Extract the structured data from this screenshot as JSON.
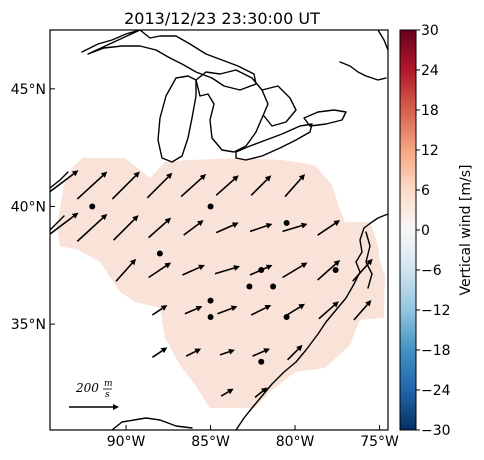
{
  "title": "2013/12/23 23:30:00 UT",
  "map": {
    "lon_range": [
      -94.5,
      -74.5
    ],
    "lat_range": [
      30.5,
      47.5
    ],
    "x_ticks": [
      {
        "lon": -90,
        "label": "90°W"
      },
      {
        "lon": -85,
        "label": "85°W"
      },
      {
        "lon": -80,
        "label": "80°W"
      },
      {
        "lon": -75,
        "label": "75°W"
      }
    ],
    "y_ticks": [
      {
        "lat": 45,
        "label": "45°N"
      },
      {
        "lat": 40,
        "label": "40°N"
      },
      {
        "lat": 35,
        "label": "35°N"
      }
    ],
    "field_color": "#f9e3d9"
  },
  "colorbar": {
    "label": "Vertical wind [m/s]",
    "min": -30,
    "max": 30,
    "ticks": [
      "30",
      "24",
      "18",
      "12",
      "6",
      "0",
      "−6",
      "−12",
      "−18",
      "−24",
      "−30"
    ],
    "colors": [
      "#053061",
      "#2166ac",
      "#4393c3",
      "#92c5de",
      "#d1e5f0",
      "#f7f7f7",
      "#fddbc7",
      "#f4a582",
      "#d6604d",
      "#b2182b",
      "#67001f"
    ]
  },
  "reference_arrow": {
    "label_value": "200",
    "label_unit_num": "m",
    "label_unit_den": "s",
    "magnitude": 200
  },
  "wind_vectors": [
    {
      "lon": -94.0,
      "lat": 40.9,
      "u": 160,
      "v": 120
    },
    {
      "lon": -92.0,
      "lat": 40.9,
      "u": 120,
      "v": 110
    },
    {
      "lon": -90.0,
      "lat": 40.9,
      "u": 110,
      "v": 110
    },
    {
      "lon": -88.0,
      "lat": 40.9,
      "u": 100,
      "v": 100
    },
    {
      "lon": -86.0,
      "lat": 40.9,
      "u": 100,
      "v": 90
    },
    {
      "lon": -84.0,
      "lat": 40.9,
      "u": 90,
      "v": 80
    },
    {
      "lon": -82.0,
      "lat": 40.9,
      "u": 80,
      "v": 80
    },
    {
      "lon": -80.0,
      "lat": 40.9,
      "u": 80,
      "v": 90
    },
    {
      "lon": -94.0,
      "lat": 39.1,
      "u": 160,
      "v": 120
    },
    {
      "lon": -92.0,
      "lat": 39.1,
      "u": 120,
      "v": 110
    },
    {
      "lon": -90.0,
      "lat": 39.1,
      "u": 100,
      "v": 100
    },
    {
      "lon": -88.0,
      "lat": 39.1,
      "u": 90,
      "v": 80
    },
    {
      "lon": -86.0,
      "lat": 39.1,
      "u": 80,
      "v": 60
    },
    {
      "lon": -84.0,
      "lat": 39.1,
      "u": 90,
      "v": 40
    },
    {
      "lon": -82.0,
      "lat": 39.1,
      "u": 90,
      "v": 30
    },
    {
      "lon": -80.0,
      "lat": 39.1,
      "u": 100,
      "v": 30
    },
    {
      "lon": -78.0,
      "lat": 39.1,
      "u": 90,
      "v": 60
    },
    {
      "lon": -90.0,
      "lat": 37.3,
      "u": 80,
      "v": 90
    },
    {
      "lon": -88.0,
      "lat": 37.3,
      "u": 90,
      "v": 60
    },
    {
      "lon": -86.0,
      "lat": 37.3,
      "u": 90,
      "v": 40
    },
    {
      "lon": -84.0,
      "lat": 37.3,
      "u": 100,
      "v": 30
    },
    {
      "lon": -82.0,
      "lat": 37.3,
      "u": 90,
      "v": 40
    },
    {
      "lon": -80.0,
      "lat": 37.3,
      "u": 100,
      "v": 60
    },
    {
      "lon": -78.0,
      "lat": 37.3,
      "u": 90,
      "v": 80
    },
    {
      "lon": -76.0,
      "lat": 37.3,
      "u": 80,
      "v": 90
    },
    {
      "lon": -88.0,
      "lat": 35.6,
      "u": 60,
      "v": 40
    },
    {
      "lon": -86.0,
      "lat": 35.6,
      "u": 70,
      "v": 30
    },
    {
      "lon": -84.0,
      "lat": 35.6,
      "u": 80,
      "v": 30
    },
    {
      "lon": -82.0,
      "lat": 35.6,
      "u": 80,
      "v": 40
    },
    {
      "lon": -80.0,
      "lat": 35.6,
      "u": 80,
      "v": 50
    },
    {
      "lon": -78.0,
      "lat": 35.6,
      "u": 80,
      "v": 70
    },
    {
      "lon": -76.0,
      "lat": 35.6,
      "u": 70,
      "v": 80
    },
    {
      "lon": -88.0,
      "lat": 33.8,
      "u": 60,
      "v": 40
    },
    {
      "lon": -86.0,
      "lat": 33.8,
      "u": 60,
      "v": 30
    },
    {
      "lon": -84.0,
      "lat": 33.8,
      "u": 60,
      "v": 20
    },
    {
      "lon": -82.0,
      "lat": 33.8,
      "u": 70,
      "v": 30
    },
    {
      "lon": -80.0,
      "lat": 33.8,
      "u": 60,
      "v": 60
    },
    {
      "lon": -84.0,
      "lat": 32.1,
      "u": 50,
      "v": 30
    },
    {
      "lon": -82.0,
      "lat": 32.1,
      "u": 50,
      "v": 40
    }
  ],
  "stations": [
    {
      "lon": -92.0,
      "lat": 40.0
    },
    {
      "lon": -85.0,
      "lat": 40.0
    },
    {
      "lon": -80.5,
      "lat": 39.3
    },
    {
      "lon": -88.0,
      "lat": 38.0
    },
    {
      "lon": -82.0,
      "lat": 37.3
    },
    {
      "lon": -82.7,
      "lat": 36.6
    },
    {
      "lon": -81.3,
      "lat": 36.6
    },
    {
      "lon": -85.0,
      "lat": 36.0
    },
    {
      "lon": -85.0,
      "lat": 35.3
    },
    {
      "lon": -80.5,
      "lat": 35.3
    },
    {
      "lon": -77.6,
      "lat": 37.3
    },
    {
      "lon": -82.0,
      "lat": 33.4
    }
  ]
}
